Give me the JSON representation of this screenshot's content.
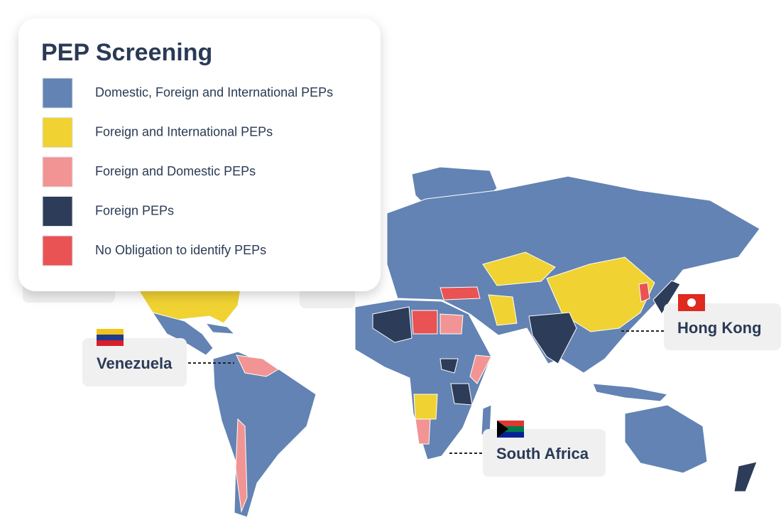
{
  "legend": {
    "title": "PEP Screening",
    "items": [
      {
        "label": "Domestic, Foreign and International PEPs",
        "color": "#6283b3"
      },
      {
        "label": "Foreign and International PEPs",
        "color": "#f0d232"
      },
      {
        "label": "Foreign and Domestic PEPs",
        "color": "#f29494"
      },
      {
        "label": "Foreign PEPs",
        "color": "#2d3c58"
      },
      {
        "label": "No Obligation to identify PEPs",
        "color": "#e95353"
      }
    ]
  },
  "callouts": [
    {
      "label": "Venezuela"
    },
    {
      "label": "Hong Kong"
    },
    {
      "label": "South Africa"
    }
  ]
}
